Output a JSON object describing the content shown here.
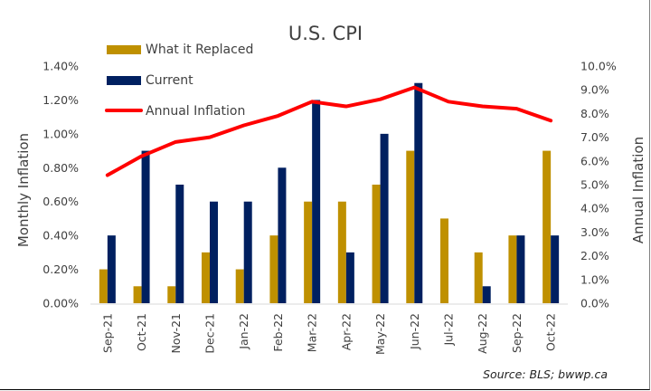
{
  "chart_data": {
    "type": "bar",
    "title": "U.S. CPI",
    "categories": [
      "Sep-21",
      "Oct-21",
      "Nov-21",
      "Dec-21",
      "Jan-22",
      "Feb-22",
      "Mar-22",
      "Apr-22",
      "May-22",
      "Jun-22",
      "Jul-22",
      "Aug-22",
      "Sep-22",
      "Oct-22"
    ],
    "series": [
      {
        "name": "What it Replaced",
        "type": "bar",
        "axis": "left",
        "color": "#BF9000",
        "values": [
          0.2,
          0.1,
          0.1,
          0.3,
          0.2,
          0.4,
          0.6,
          0.6,
          0.7,
          0.9,
          0.5,
          0.3,
          0.4,
          0.9
        ]
      },
      {
        "name": "Current",
        "type": "bar",
        "axis": "left",
        "color": "#002060",
        "values": [
          0.4,
          0.9,
          0.7,
          0.6,
          0.6,
          0.8,
          1.2,
          0.3,
          1.0,
          1.3,
          0.0,
          0.1,
          0.4,
          0.4
        ]
      },
      {
        "name": "Annual Inflation",
        "type": "line",
        "axis": "right",
        "color": "#FF0000",
        "values": [
          5.4,
          6.2,
          6.8,
          7.0,
          7.5,
          7.9,
          8.5,
          8.3,
          8.6,
          9.1,
          8.5,
          8.3,
          8.2,
          7.7
        ]
      }
    ],
    "ylabel": "Monthly Inflation",
    "y2label": "Annual Inflation",
    "ylim": [
      0,
      1.4
    ],
    "y2lim": [
      0,
      10
    ],
    "yticks": [
      "0.00%",
      "0.20%",
      "0.40%",
      "0.60%",
      "0.80%",
      "1.00%",
      "1.20%",
      "1.40%"
    ],
    "y2ticks": [
      "0.0%",
      "1.0%",
      "2.0%",
      "3.0%",
      "4.0%",
      "5.0%",
      "6.0%",
      "7.0%",
      "8.0%",
      "9.0%",
      "10.0%"
    ],
    "grid": false,
    "legend_position": "top-left",
    "annotation": "Source: BLS; bwwp.ca"
  }
}
